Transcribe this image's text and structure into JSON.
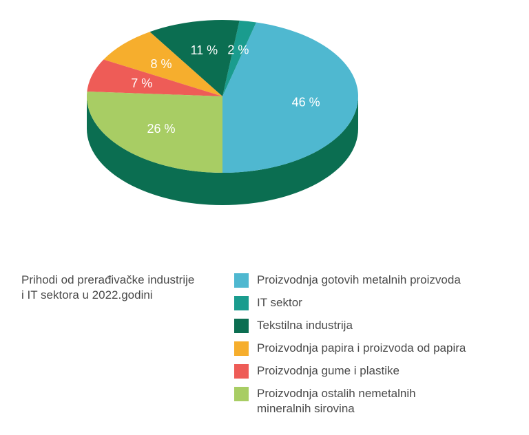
{
  "caption": {
    "line1": "Prihodi od prerađivačke industrije",
    "line2": "i IT sektora u 2022.godini"
  },
  "chart_data": {
    "type": "pie",
    "title": "Prihodi od prerađivačke industrije i IT sektora u 2022.godini",
    "slices": [
      {
        "label": "Proizvodnja gotovih metalnih proizvoda",
        "value": 46,
        "display": "46 %",
        "color": "#4FB8D0"
      },
      {
        "label": "IT sektor",
        "value": 2,
        "display": "2 %",
        "color": "#1A9C8E"
      },
      {
        "label": "Tekstilna industrija",
        "value": 11,
        "display": "11 %",
        "color": "#0B6E51"
      },
      {
        "label": "Proizvodnja papira i proizvoda od papira",
        "value": 8,
        "display": "8 %",
        "color": "#F6AE2D"
      },
      {
        "label": "Proizvodnja gume i plastike",
        "value": 7,
        "display": "7 %",
        "color": "#EE5C57"
      },
      {
        "label": "Proizvodnja ostalih nemetalnih mineralnih sirovina",
        "value": 26,
        "display": "26 %",
        "color": "#A8CD64"
      }
    ],
    "side_color": "#0B6E51"
  },
  "legend": {
    "items": [
      {
        "lines": [
          "Proizvodnja gotovih metalnih proizvoda"
        ],
        "color": "#4FB8D0"
      },
      {
        "lines": [
          "IT sektor"
        ],
        "color": "#1A9C8E"
      },
      {
        "lines": [
          "Tekstilna industrija"
        ],
        "color": "#0B6E51"
      },
      {
        "lines": [
          "Proizvodnja papira i proizvoda od papira"
        ],
        "color": "#F6AE2D"
      },
      {
        "lines": [
          "Proizvodnja gume i plastike"
        ],
        "color": "#EE5C57"
      },
      {
        "lines": [
          "Proizvodnja ostalih nemetalnih",
          "mineralnih sirovina"
        ],
        "color": "#A8CD64"
      }
    ]
  }
}
